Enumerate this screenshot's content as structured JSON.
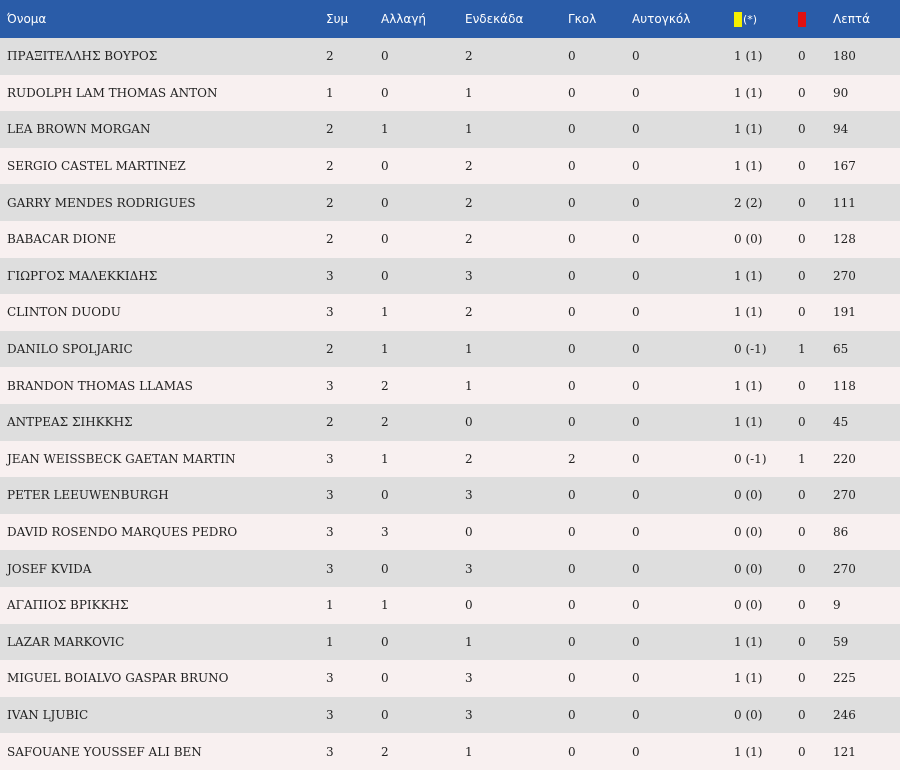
{
  "headers": {
    "name": "Όνομα",
    "apps": "Συμ",
    "subs": "Αλλαγή",
    "starts": "Ενδεκάδα",
    "goals": "Γκολ",
    "own_goals": "Αυτογκόλ",
    "yellow_note": "(*)",
    "minutes": "Λεπτά"
  },
  "icons": {
    "yellow_card_color": "#f5f000",
    "red_card_color": "#e01010"
  },
  "colors": {
    "header_bg": "#2a5ca8",
    "row_odd": "#dedede",
    "row_even": "#f8f0f0"
  },
  "rows": [
    {
      "name": "ΠΡΑΞΙΤΕΛΛΗΣ ΒΟΥΡΟΣ",
      "apps": "2",
      "subs": "0",
      "starts": "2",
      "goals": "0",
      "own_goals": "0",
      "yellow": "1 (1)",
      "red": "0",
      "minutes": "180"
    },
    {
      "name": "RUDOLPH LAM THOMAS ANTON",
      "apps": "1",
      "subs": "0",
      "starts": "1",
      "goals": "0",
      "own_goals": "0",
      "yellow": "1 (1)",
      "red": "0",
      "minutes": "90"
    },
    {
      "name": "LEA BROWN MORGAN",
      "apps": "2",
      "subs": "1",
      "starts": "1",
      "goals": "0",
      "own_goals": "0",
      "yellow": "1 (1)",
      "red": "0",
      "minutes": "94"
    },
    {
      "name": "SERGIO CASTEL MARTINEZ",
      "apps": "2",
      "subs": "0",
      "starts": "2",
      "goals": "0",
      "own_goals": "0",
      "yellow": "1 (1)",
      "red": "0",
      "minutes": "167"
    },
    {
      "name": "GARRY MENDES RODRIGUES",
      "apps": "2",
      "subs": "0",
      "starts": "2",
      "goals": "0",
      "own_goals": "0",
      "yellow": "2 (2)",
      "red": "0",
      "minutes": "111"
    },
    {
      "name": "BABACAR DIONE",
      "apps": "2",
      "subs": "0",
      "starts": "2",
      "goals": "0",
      "own_goals": "0",
      "yellow": "0 (0)",
      "red": "0",
      "minutes": "128"
    },
    {
      "name": "ΓΙΩΡΓΟΣ ΜΑΛΕΚΚΙΔΗΣ",
      "apps": "3",
      "subs": "0",
      "starts": "3",
      "goals": "0",
      "own_goals": "0",
      "yellow": "1 (1)",
      "red": "0",
      "minutes": "270"
    },
    {
      "name": "CLINTON DUODU",
      "apps": "3",
      "subs": "1",
      "starts": "2",
      "goals": "0",
      "own_goals": "0",
      "yellow": "1 (1)",
      "red": "0",
      "minutes": "191"
    },
    {
      "name": "DANILO SPOLJARIC",
      "apps": "2",
      "subs": "1",
      "starts": "1",
      "goals": "0",
      "own_goals": "0",
      "yellow": "0 (-1)",
      "red": "1",
      "minutes": "65"
    },
    {
      "name": "BRANDON THOMAS LLAMAS",
      "apps": "3",
      "subs": "2",
      "starts": "1",
      "goals": "0",
      "own_goals": "0",
      "yellow": "1 (1)",
      "red": "0",
      "minutes": "118"
    },
    {
      "name": "ΑΝΤΡΕΑΣ ΣΙΗΚΚΗΣ",
      "apps": "2",
      "subs": "2",
      "starts": "0",
      "goals": "0",
      "own_goals": "0",
      "yellow": "1 (1)",
      "red": "0",
      "minutes": "45"
    },
    {
      "name": "JEAN WEISSBECK GAETAN MARTIN",
      "apps": "3",
      "subs": "1",
      "starts": "2",
      "goals": "2",
      "own_goals": "0",
      "yellow": "0 (-1)",
      "red": "1",
      "minutes": "220"
    },
    {
      "name": "PETER LEEUWENBURGH",
      "apps": "3",
      "subs": "0",
      "starts": "3",
      "goals": "0",
      "own_goals": "0",
      "yellow": "0 (0)",
      "red": "0",
      "minutes": "270"
    },
    {
      "name": "DAVID ROSENDO MARQUES PEDRO",
      "apps": "3",
      "subs": "3",
      "starts": "0",
      "goals": "0",
      "own_goals": "0",
      "yellow": "0 (0)",
      "red": "0",
      "minutes": "86"
    },
    {
      "name": "JOSEF KVIDA",
      "apps": "3",
      "subs": "0",
      "starts": "3",
      "goals": "0",
      "own_goals": "0",
      "yellow": "0 (0)",
      "red": "0",
      "minutes": "270"
    },
    {
      "name": "ΑΓΑΠΙΟΣ ΒΡΙΚΚΗΣ",
      "apps": "1",
      "subs": "1",
      "starts": "0",
      "goals": "0",
      "own_goals": "0",
      "yellow": "0 (0)",
      "red": "0",
      "minutes": "9"
    },
    {
      "name": "LAZAR MARKOVIC",
      "apps": "1",
      "subs": "0",
      "starts": "1",
      "goals": "0",
      "own_goals": "0",
      "yellow": "1 (1)",
      "red": "0",
      "minutes": "59"
    },
    {
      "name": "MIGUEL BOIALVO GASPAR BRUNO",
      "apps": "3",
      "subs": "0",
      "starts": "3",
      "goals": "0",
      "own_goals": "0",
      "yellow": "1 (1)",
      "red": "0",
      "minutes": "225"
    },
    {
      "name": "IVAN LJUBIC",
      "apps": "3",
      "subs": "0",
      "starts": "3",
      "goals": "0",
      "own_goals": "0",
      "yellow": "0 (0)",
      "red": "0",
      "minutes": "246"
    },
    {
      "name": "SAFOUANE YOUSSEF ALI BEN",
      "apps": "3",
      "subs": "2",
      "starts": "1",
      "goals": "0",
      "own_goals": "0",
      "yellow": "1 (1)",
      "red": "0",
      "minutes": "121"
    }
  ]
}
